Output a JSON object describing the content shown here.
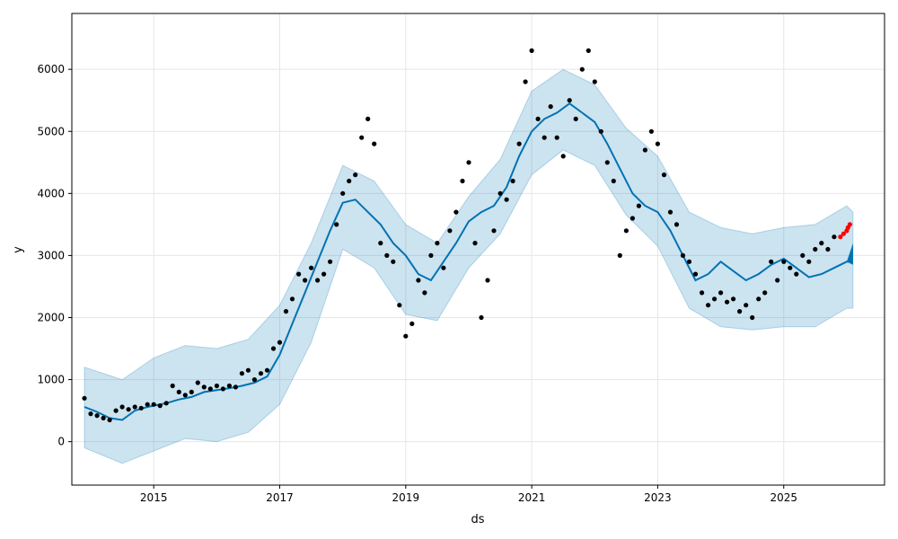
{
  "chart_data": {
    "type": "scatter",
    "xlabel": "ds",
    "ylabel": "y",
    "xlim": [
      2013.7,
      2026.6
    ],
    "ylim": [
      -700,
      6900
    ],
    "x_ticks": [
      2015,
      2017,
      2019,
      2021,
      2023,
      2025
    ],
    "x_tick_labels": [
      "2015",
      "2017",
      "2019",
      "2021",
      "2023",
      "2025"
    ],
    "y_ticks": [
      0,
      1000,
      2000,
      3000,
      4000,
      5000,
      6000
    ],
    "y_tick_labels": [
      "0",
      "1000",
      "2000",
      "3000",
      "4000",
      "5000",
      "6000"
    ],
    "grid": true,
    "colors": {
      "observed": "#000000",
      "recent": "#ff0000",
      "forecast_line": "#0072b2",
      "uncertainty_band": "#0072b2",
      "forecast_band": "#0072b2"
    },
    "series": [
      {
        "role": "forecast",
        "x": [
          2013.9,
          2014.1,
          2014.3,
          2014.5,
          2014.7,
          2014.9,
          2015.0,
          2015.2,
          2015.4,
          2015.6,
          2015.8,
          2016.0,
          2016.2,
          2016.4,
          2016.6,
          2016.8,
          2017.0,
          2017.2,
          2017.4,
          2017.6,
          2017.8,
          2018.0,
          2018.2,
          2018.4,
          2018.6,
          2018.8,
          2019.0,
          2019.2,
          2019.4,
          2019.6,
          2019.8,
          2020.0,
          2020.2,
          2020.4,
          2020.6,
          2020.8,
          2021.0,
          2021.2,
          2021.4,
          2021.6,
          2021.8,
          2022.0,
          2022.2,
          2022.4,
          2022.6,
          2022.8,
          2023.0,
          2023.2,
          2023.4,
          2023.6,
          2023.8,
          2024.0,
          2024.2,
          2024.4,
          2024.6,
          2024.8,
          2025.0,
          2025.2,
          2025.4,
          2025.6,
          2025.8,
          2026.0,
          2026.1
        ],
        "y": [
          560,
          480,
          380,
          350,
          500,
          560,
          580,
          620,
          680,
          720,
          800,
          830,
          860,
          900,
          950,
          1050,
          1400,
          1900,
          2400,
          2900,
          3400,
          3850,
          3900,
          3700,
          3500,
          3200,
          3000,
          2700,
          2600,
          2900,
          3200,
          3550,
          3700,
          3800,
          4100,
          4600,
          5000,
          5200,
          5300,
          5450,
          5300,
          5150,
          4800,
          4400,
          4000,
          3800,
          3700,
          3400,
          3000,
          2600,
          2700,
          2900,
          2750,
          2600,
          2700,
          2850,
          2950,
          2800,
          2650,
          2700,
          2800,
          2900,
          2900
        ]
      },
      {
        "role": "upper_bound",
        "x": [
          2013.9,
          2014.5,
          2015.0,
          2015.5,
          2016.0,
          2016.5,
          2017.0,
          2017.5,
          2018.0,
          2018.5,
          2019.0,
          2019.5,
          2020.0,
          2020.5,
          2021.0,
          2021.5,
          2022.0,
          2022.5,
          2023.0,
          2023.5,
          2024.0,
          2024.5,
          2025.0,
          2025.5,
          2026.0,
          2026.1
        ],
        "y": [
          1200,
          1000,
          1350,
          1550,
          1500,
          1650,
          2200,
          3200,
          4450,
          4200,
          3500,
          3200,
          3950,
          4550,
          5650,
          6000,
          5750,
          5050,
          4600,
          3700,
          3450,
          3350,
          3450,
          3500,
          3800,
          3700
        ]
      },
      {
        "role": "lower_bound",
        "x": [
          2013.9,
          2014.5,
          2015.0,
          2015.5,
          2016.0,
          2016.5,
          2017.0,
          2017.5,
          2018.0,
          2018.5,
          2019.0,
          2019.5,
          2020.0,
          2020.5,
          2021.0,
          2021.5,
          2022.0,
          2022.5,
          2023.0,
          2023.5,
          2024.0,
          2024.5,
          2025.0,
          2025.5,
          2026.0,
          2026.1
        ],
        "y": [
          -100,
          -350,
          -150,
          50,
          0,
          150,
          600,
          1600,
          3100,
          2800,
          2050,
          1950,
          2800,
          3350,
          4300,
          4700,
          4450,
          3650,
          3150,
          2150,
          1850,
          1800,
          1850,
          1850,
          2150,
          2150
        ]
      },
      {
        "role": "observed",
        "x": [
          2013.9,
          2014.0,
          2014.1,
          2014.2,
          2014.3,
          2014.4,
          2014.5,
          2014.6,
          2014.7,
          2014.8,
          2014.9,
          2015.0,
          2015.1,
          2015.2,
          2015.3,
          2015.4,
          2015.5,
          2015.6,
          2015.7,
          2015.8,
          2015.9,
          2016.0,
          2016.1,
          2016.2,
          2016.3,
          2016.4,
          2016.5,
          2016.6,
          2016.7,
          2016.8,
          2016.9,
          2017.0,
          2017.1,
          2017.2,
          2017.3,
          2017.4,
          2017.5,
          2017.6,
          2017.7,
          2017.8,
          2017.9,
          2018.0,
          2018.1,
          2018.2,
          2018.3,
          2018.4,
          2018.5,
          2018.6,
          2018.7,
          2018.8,
          2018.9,
          2019.0,
          2019.1,
          2019.2,
          2019.3,
          2019.4,
          2019.5,
          2019.6,
          2019.7,
          2019.8,
          2019.9,
          2020.0,
          2020.1,
          2020.2,
          2020.3,
          2020.4,
          2020.5,
          2020.6,
          2020.7,
          2020.8,
          2020.9,
          2021.0,
          2021.1,
          2021.2,
          2021.3,
          2021.4,
          2021.5,
          2021.6,
          2021.7,
          2021.8,
          2021.9,
          2022.0,
          2022.1,
          2022.2,
          2022.3,
          2022.4,
          2022.5,
          2022.6,
          2022.7,
          2022.8,
          2022.9,
          2023.0,
          2023.1,
          2023.2,
          2023.3,
          2023.4,
          2023.5,
          2023.6,
          2023.7,
          2023.8,
          2023.9,
          2024.0,
          2024.1,
          2024.2,
          2024.3,
          2024.4,
          2024.5,
          2024.6,
          2024.7,
          2024.8,
          2024.9,
          2025.0,
          2025.1,
          2025.2,
          2025.3,
          2025.4,
          2025.5,
          2025.6,
          2025.7,
          2025.8
        ],
        "y": [
          700,
          450,
          420,
          380,
          350,
          500,
          560,
          520,
          560,
          540,
          600,
          600,
          580,
          620,
          900,
          800,
          750,
          800,
          950,
          880,
          850,
          900,
          850,
          900,
          880,
          1100,
          1150,
          1000,
          1100,
          1150,
          1500,
          1600,
          2100,
          2300,
          2700,
          2600,
          2800,
          2600,
          2700,
          2900,
          3500,
          4000,
          4200,
          4300,
          4900,
          5200,
          4800,
          3200,
          3000,
          2900,
          2200,
          1700,
          1900,
          2600,
          2400,
          3000,
          3200,
          2800,
          3400,
          3700,
          4200,
          4500,
          3200,
          2000,
          2600,
          3400,
          4000,
          3900,
          4200,
          4800,
          5800,
          6300,
          5200,
          4900,
          5400,
          4900,
          4600,
          5500,
          5200,
          6000,
          6300,
          5800,
          5000,
          4500,
          4200,
          3000,
          3400,
          3600,
          3800,
          4700,
          5000,
          4800,
          4300,
          3700,
          3500,
          3000,
          2900,
          2700,
          2400,
          2200,
          2300,
          2400,
          2250,
          2300,
          2100,
          2200,
          2000,
          2300,
          2400,
          2900,
          2600,
          2900,
          2800,
          2700,
          3000,
          2900,
          3100,
          3200,
          3100,
          3300
        ]
      },
      {
        "role": "recent",
        "x": [
          2025.9,
          2025.95,
          2026.0,
          2026.02,
          2026.05
        ],
        "y": [
          3300,
          3350,
          3400,
          3450,
          3500
        ]
      }
    ]
  }
}
